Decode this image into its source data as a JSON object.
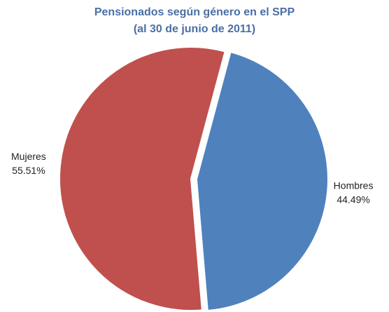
{
  "chart_data": {
    "type": "pie",
    "title": [
      "Pensionados según género en el SPP",
      "(al 30 de junio de 2011)"
    ],
    "categories": [
      "Hombres",
      "Mujeres"
    ],
    "values": [
      44.49,
      55.51
    ],
    "value_labels": [
      "44.49%",
      "55.51%"
    ],
    "colors": [
      "#4f81bd",
      "#c0504d"
    ]
  }
}
